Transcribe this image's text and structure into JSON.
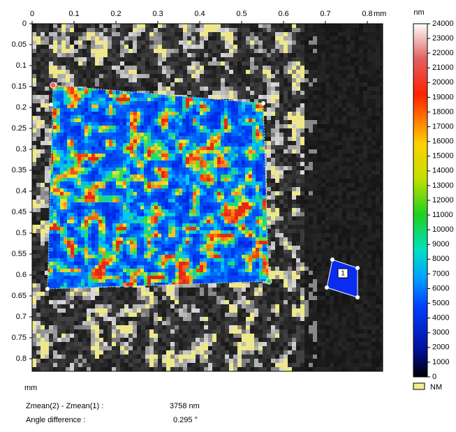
{
  "x_axis": {
    "ticks": [
      0,
      0.1,
      0.2,
      0.3,
      0.4,
      0.5,
      0.6,
      0.7,
      0.8
    ],
    "unit": "mm"
  },
  "y_axis": {
    "ticks": [
      0,
      0.05,
      0.1,
      0.15,
      0.2,
      0.25,
      0.3,
      0.35,
      0.4,
      0.45,
      0.5,
      0.55,
      0.6,
      0.65,
      0.7,
      0.75,
      0.8
    ],
    "unit": "mm"
  },
  "colorbar": {
    "unit": "nm",
    "ticks": [
      0,
      1000,
      2000,
      3000,
      4000,
      5000,
      6000,
      7000,
      8000,
      9000,
      10000,
      11000,
      12000,
      13000,
      14000,
      15000,
      16000,
      17000,
      18000,
      19000,
      20000,
      21000,
      22000,
      23000,
      24000
    ]
  },
  "legend": {
    "label": "NM"
  },
  "region_label": "1",
  "measurements": [
    {
      "label": "Zmean(2) - Zmean(1) :",
      "value": "3758 nm"
    },
    {
      "label": "Angle difference :",
      "value": "0.295 °"
    }
  ]
}
